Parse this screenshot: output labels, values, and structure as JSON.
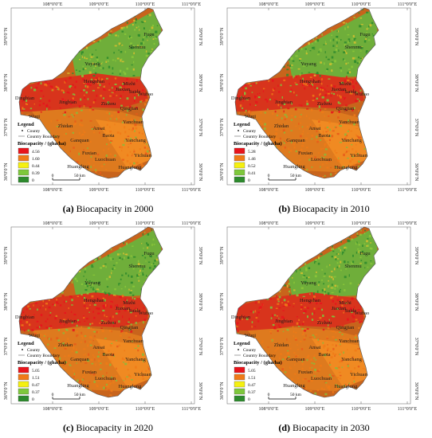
{
  "top_ticks": [
    "108°0′0″E",
    "109°0′0″E",
    "110°0′0″E",
    "111°0′0″E"
  ],
  "bottom_ticks": [
    "108°0′0″E",
    "109°0′0″E",
    "110°0′0″E",
    "111°0′0″E"
  ],
  "left_ticks": [
    "39°0′0″N",
    "38°0′0″N",
    "37°0′0″N",
    "36°0′0″N"
  ],
  "right_ticks": [
    "39°0′0″N",
    "38°0′0″N",
    "37°0′0″N",
    "36°0′0″N"
  ],
  "places": [
    "Fugu",
    "Shenmu",
    "Yuyang",
    "Hengshan",
    "Mizhi",
    "Jiaxian",
    "Suide",
    "Wubao",
    "Dingbian",
    "Jingbian",
    "Zizhou",
    "Qingjian",
    "Yanchuan",
    "Wuqi",
    "Zhidan",
    "Ansai",
    "Ganquan",
    "Baota",
    "Yanchang",
    "Fuxian",
    "Yichuan",
    "Luochuan",
    "Huanglong",
    "Huangling"
  ],
  "legend": {
    "title": "Legend",
    "county": "County",
    "boundary": "Country Boundary",
    "bio_title": "Biocapacity / (gha/ha)",
    "scale": "50 km",
    "scale_zero": "0"
  },
  "colors": [
    "#e8141c",
    "#f07a18",
    "#f5f010",
    "#7ec83c",
    "#2d8a2d"
  ],
  "panels": [
    {
      "label": "(a)",
      "title": "Biocapacity in 2000",
      "values": [
        "4.56",
        "1.60",
        "0.44",
        "0.39",
        "0"
      ]
    },
    {
      "label": "(b)",
      "title": "Biocapacity in 2010",
      "values": [
        "5.28",
        "1.46",
        "0.52",
        "0.41",
        "0"
      ]
    },
    {
      "label": "(c)",
      "title": "Biocapacity in 2020",
      "values": [
        "5.05",
        "1.51",
        "0.47",
        "0.37",
        "0"
      ]
    },
    {
      "label": "(d)",
      "title": "Biocapacity in 2030",
      "values": [
        "5.05",
        "1.51",
        "0.47",
        "0.37",
        "0"
      ]
    }
  ]
}
